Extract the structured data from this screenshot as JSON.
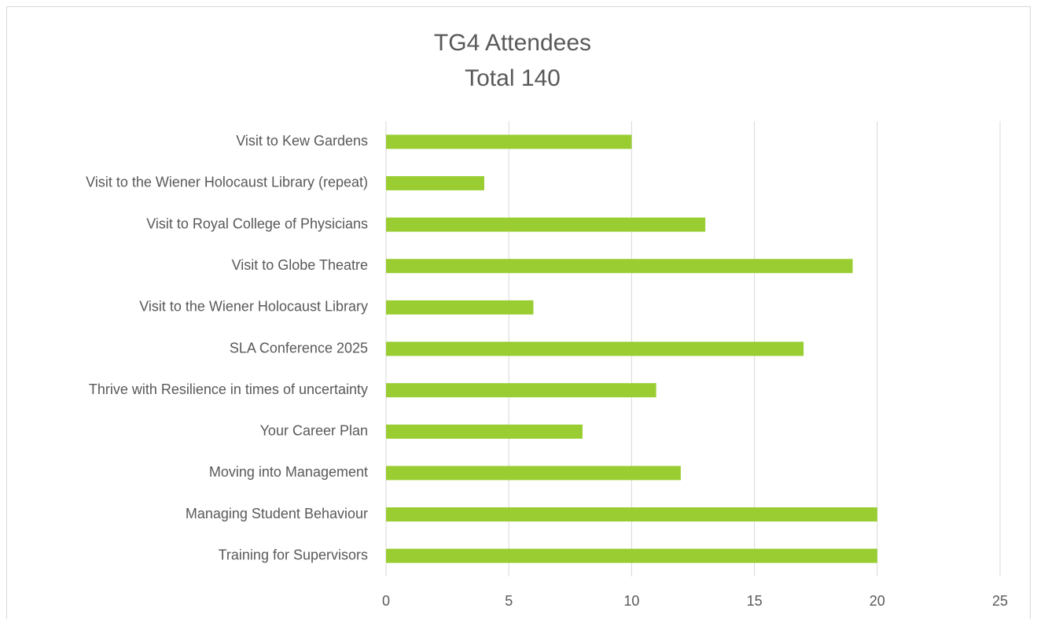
{
  "chart_data": {
    "type": "barh",
    "title": "TG4 Attendees",
    "subtitle": "Total 140",
    "categories": [
      "Visit to Kew Gardens",
      "Visit to the Wiener Holocaust Library (repeat)",
      "Visit to Royal College of Physicians",
      "Visit to Globe Theatre",
      "Visit to the Wiener Holocaust Library",
      "SLA Conference 2025",
      "Thrive with Resilience in times of uncertainty",
      "Your Career Plan",
      "Moving into Management",
      "Managing Student Behaviour",
      "Training for Supervisors"
    ],
    "values": [
      10,
      4,
      13,
      19,
      6,
      17,
      11,
      8,
      12,
      20,
      20
    ],
    "color": "#9acd32",
    "xlim": [
      0,
      25
    ],
    "xticks": [
      0,
      5,
      10,
      15,
      20,
      25
    ],
    "grid": true
  }
}
